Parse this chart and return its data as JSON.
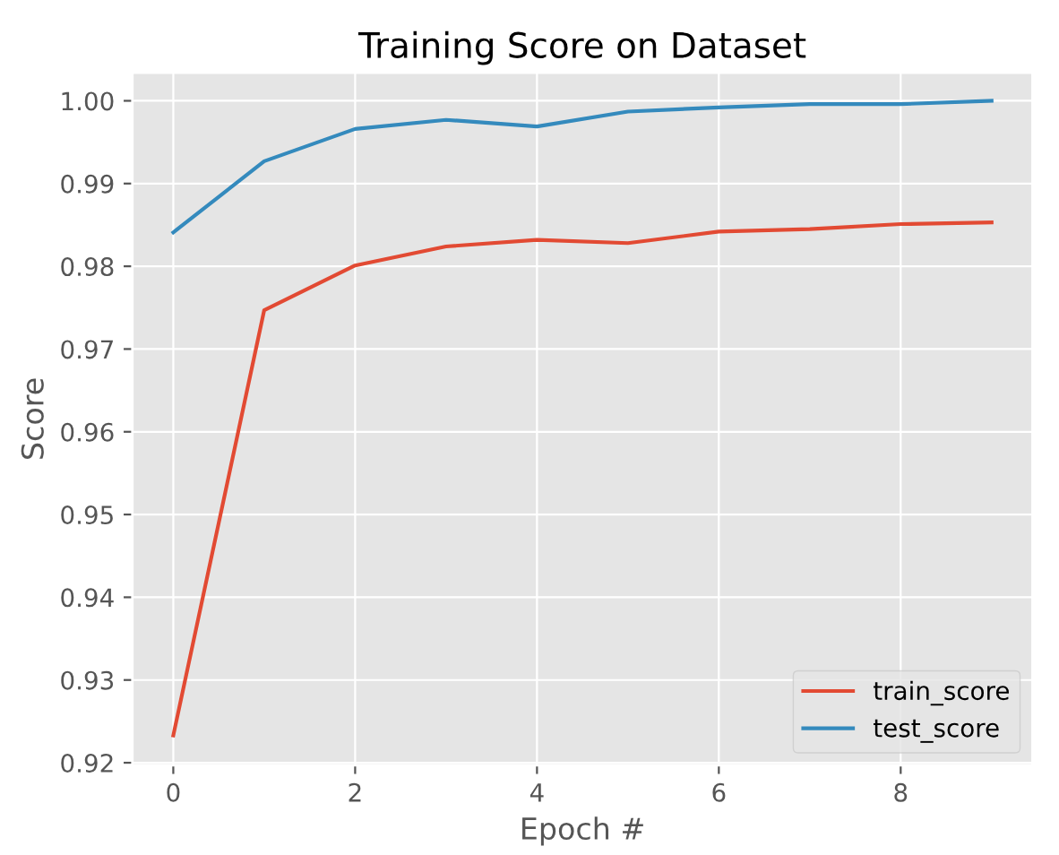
{
  "chart_data": {
    "type": "line",
    "title": "Training Score on Dataset",
    "xlabel": "Epoch #",
    "ylabel": "Score",
    "x": [
      0,
      1,
      2,
      3,
      4,
      5,
      6,
      7,
      8,
      9
    ],
    "series": [
      {
        "name": "train_score",
        "color": "#e24a33",
        "values": [
          0.9233,
          0.9747,
          0.9801,
          0.9824,
          0.9832,
          0.9828,
          0.9842,
          0.9845,
          0.9851,
          0.9853
        ]
      },
      {
        "name": "test_score",
        "color": "#348abd",
        "values": [
          0.9841,
          0.9927,
          0.9966,
          0.9977,
          0.9969,
          0.9987,
          0.9992,
          0.9996,
          0.9996,
          1.0
        ]
      }
    ],
    "xlim": [
      -0.45,
      9.45
    ],
    "xticks": [
      0,
      2,
      4,
      6,
      8
    ],
    "ylim": [
      0.9197,
      1.0034
    ],
    "yticks": [
      {
        "value": 0.92,
        "label": "0.92"
      },
      {
        "value": 0.93,
        "label": "0.93"
      },
      {
        "value": 0.94,
        "label": "0.94"
      },
      {
        "value": 0.95,
        "label": "0.95"
      },
      {
        "value": 0.96,
        "label": "0.96"
      },
      {
        "value": 0.97,
        "label": "0.97"
      },
      {
        "value": 0.98,
        "label": "0.98"
      },
      {
        "value": 0.99,
        "label": "0.99"
      },
      {
        "value": 1.0,
        "label": "1.00"
      }
    ],
    "grid": true,
    "legend": "lower right"
  }
}
